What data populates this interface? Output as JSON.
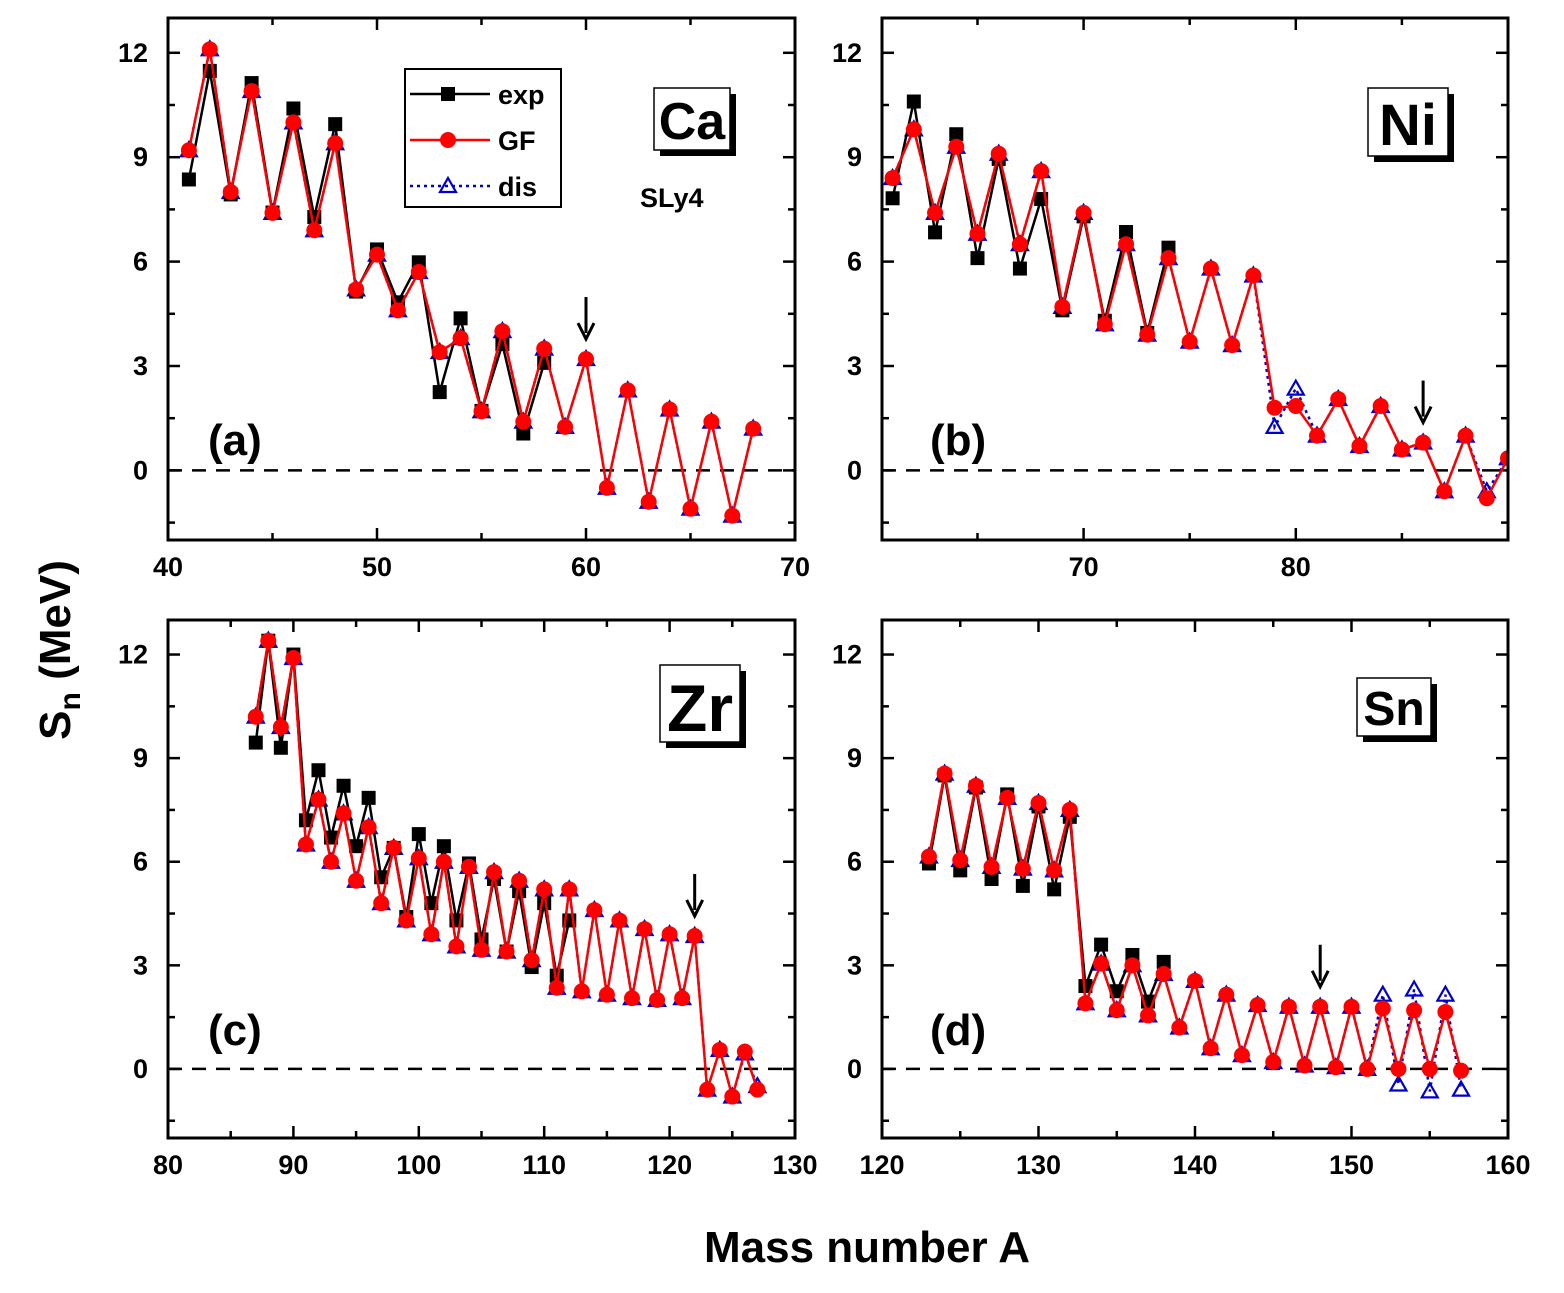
{
  "figure": {
    "ylabel_main": "S",
    "ylabel_sub": "n",
    "ylabel_unit": " (MeV)",
    "xlabel": "Mass number A",
    "legend": [
      {
        "name": "exp",
        "color": "#000000",
        "marker": "square",
        "line": "solid"
      },
      {
        "name": "GF",
        "color": "#ff0000",
        "marker": "circle",
        "line": "solid"
      },
      {
        "name": "dis",
        "color": "#0000cc",
        "marker": "triangle-open",
        "line": "dotted"
      }
    ],
    "note": "SLy4"
  },
  "chart_data": [
    {
      "type": "line",
      "panel": "(a)",
      "element": "Ca",
      "xlim": [
        40,
        70
      ],
      "ylim": [
        -2,
        13
      ],
      "xticks": [
        40,
        50,
        60,
        70
      ],
      "yticks": [
        0,
        3,
        6,
        9,
        12
      ],
      "arrow_x": 60,
      "series": [
        {
          "name": "exp",
          "x": [
            41,
            42,
            43,
            44,
            45,
            46,
            47,
            48,
            49,
            50,
            51,
            52,
            53,
            54,
            55,
            56,
            57,
            58
          ],
          "y": [
            8.36,
            11.48,
            7.93,
            11.13,
            7.41,
            10.4,
            7.28,
            9.95,
            5.14,
            6.35,
            4.83,
            5.98,
            2.25,
            4.37,
            1.71,
            3.63,
            1.06,
            3.09
          ]
        },
        {
          "name": "GF",
          "x": [
            41,
            42,
            43,
            44,
            45,
            46,
            47,
            48,
            49,
            50,
            51,
            52,
            53,
            54,
            55,
            56,
            57,
            58,
            59,
            60,
            61,
            62,
            63,
            64,
            65,
            66,
            67,
            68
          ],
          "y": [
            9.2,
            12.1,
            8.0,
            10.9,
            7.4,
            10.0,
            6.9,
            9.4,
            5.2,
            6.2,
            4.6,
            5.7,
            3.4,
            3.8,
            1.7,
            4.0,
            1.4,
            3.5,
            1.25,
            3.2,
            -0.5,
            2.3,
            -0.9,
            1.75,
            -1.1,
            1.4,
            -1.3,
            1.2
          ]
        },
        {
          "name": "dis",
          "x": [
            41,
            42,
            43,
            44,
            45,
            46,
            47,
            48,
            49,
            50,
            51,
            52,
            53,
            54,
            55,
            56,
            57,
            58,
            59,
            60,
            61,
            62,
            63,
            64,
            65,
            66,
            67,
            68
          ],
          "y": [
            9.2,
            12.1,
            8.0,
            10.9,
            7.4,
            10.0,
            6.9,
            9.4,
            5.2,
            6.2,
            4.6,
            5.7,
            3.4,
            3.8,
            1.7,
            4.0,
            1.4,
            3.5,
            1.25,
            3.2,
            -0.5,
            2.3,
            -0.9,
            1.75,
            -1.1,
            1.4,
            -1.3,
            1.2
          ]
        }
      ]
    },
    {
      "type": "line",
      "panel": "(b)",
      "element": "Ni",
      "xlim": [
        60.5,
        90
      ],
      "ylim": [
        -2,
        13
      ],
      "xticks": [
        70,
        80
      ],
      "yticks": [
        0,
        3,
        6,
        9,
        12
      ],
      "arrow_x": 86,
      "series": [
        {
          "name": "exp",
          "x": [
            61,
            62,
            63,
            64,
            65,
            66,
            67,
            68,
            69,
            70,
            71,
            72,
            73,
            74
          ],
          "y": [
            7.82,
            10.6,
            6.84,
            9.66,
            6.1,
            8.95,
            5.8,
            7.8,
            4.6,
            7.3,
            4.3,
            6.85,
            3.95,
            6.4
          ]
        },
        {
          "name": "GF",
          "x": [
            61,
            62,
            63,
            64,
            65,
            66,
            67,
            68,
            69,
            70,
            71,
            72,
            73,
            74,
            75,
            76,
            77,
            78,
            79,
            80,
            81,
            82,
            83,
            84,
            85,
            86,
            87,
            88,
            89,
            90
          ],
          "y": [
            8.4,
            9.8,
            7.4,
            9.3,
            6.8,
            9.1,
            6.5,
            8.6,
            4.7,
            7.4,
            4.2,
            6.5,
            3.9,
            6.1,
            3.7,
            5.8,
            3.6,
            5.6,
            1.8,
            1.85,
            1.0,
            2.05,
            0.7,
            1.85,
            0.6,
            0.8,
            -0.6,
            1.0,
            -0.8,
            0.35
          ]
        },
        {
          "name": "dis",
          "x": [
            61,
            62,
            63,
            64,
            65,
            66,
            67,
            68,
            69,
            70,
            71,
            72,
            73,
            74,
            75,
            76,
            77,
            78,
            79,
            80,
            81,
            82,
            83,
            84,
            85,
            86,
            87,
            88,
            89,
            90
          ],
          "y": [
            8.4,
            9.8,
            7.4,
            9.3,
            6.8,
            9.1,
            6.5,
            8.6,
            4.7,
            7.4,
            4.2,
            6.5,
            3.9,
            6.1,
            3.7,
            5.8,
            3.6,
            5.6,
            1.25,
            2.35,
            1.0,
            2.05,
            0.7,
            1.85,
            0.6,
            0.8,
            -0.6,
            1.0,
            -0.6,
            0.35
          ]
        }
      ]
    },
    {
      "type": "line",
      "panel": "(c)",
      "element": "Zr",
      "xlim": [
        80,
        130
      ],
      "ylim": [
        -2,
        13
      ],
      "xticks": [
        80,
        90,
        100,
        110,
        120,
        130
      ],
      "yticks": [
        0,
        3,
        6,
        9,
        12
      ],
      "arrow_x": 122,
      "series": [
        {
          "name": "exp",
          "x": [
            87,
            88,
            89,
            90,
            91,
            92,
            93,
            94,
            95,
            96,
            97,
            98,
            99,
            100,
            101,
            102,
            103,
            104,
            105,
            106,
            107,
            108,
            109,
            110,
            111,
            112
          ],
          "y": [
            9.45,
            12.4,
            9.3,
            12.0,
            7.2,
            8.65,
            6.7,
            8.2,
            6.45,
            7.85,
            5.55,
            6.4,
            4.4,
            6.8,
            4.8,
            6.45,
            4.3,
            5.95,
            3.75,
            5.5,
            3.4,
            5.15,
            2.95,
            4.8,
            2.7,
            4.3
          ]
        },
        {
          "name": "GF",
          "x": [
            87,
            88,
            89,
            90,
            91,
            92,
            93,
            94,
            95,
            96,
            97,
            98,
            99,
            100,
            101,
            102,
            103,
            104,
            105,
            106,
            107,
            108,
            109,
            110,
            111,
            112,
            113,
            114,
            115,
            116,
            117,
            118,
            119,
            120,
            121,
            122,
            123,
            124,
            125,
            126,
            127
          ],
          "y": [
            10.2,
            12.4,
            9.9,
            11.9,
            6.5,
            7.8,
            6.0,
            7.4,
            5.45,
            7.0,
            4.8,
            6.4,
            4.3,
            6.1,
            3.9,
            6.0,
            3.55,
            5.85,
            3.45,
            5.7,
            3.4,
            5.45,
            3.15,
            5.2,
            2.35,
            5.2,
            2.25,
            4.6,
            2.15,
            4.3,
            2.05,
            4.05,
            2.0,
            3.9,
            2.05,
            3.85,
            -0.6,
            0.55,
            -0.8,
            0.5,
            -0.6
          ]
        },
        {
          "name": "dis",
          "x": [
            87,
            88,
            89,
            90,
            91,
            92,
            93,
            94,
            95,
            96,
            97,
            98,
            99,
            100,
            101,
            102,
            103,
            104,
            105,
            106,
            107,
            108,
            109,
            110,
            111,
            112,
            113,
            114,
            115,
            116,
            117,
            118,
            119,
            120,
            121,
            122,
            123,
            124,
            125,
            126,
            127
          ],
          "y": [
            10.2,
            12.4,
            9.9,
            11.9,
            6.5,
            7.8,
            6.0,
            7.4,
            5.45,
            7.0,
            4.8,
            6.4,
            4.3,
            6.1,
            3.9,
            6.0,
            3.55,
            5.85,
            3.45,
            5.7,
            3.4,
            5.45,
            3.15,
            5.2,
            2.35,
            5.2,
            2.25,
            4.6,
            2.15,
            4.3,
            2.05,
            4.05,
            2.0,
            3.9,
            2.05,
            3.85,
            -0.6,
            0.55,
            -0.8,
            0.45,
            -0.5
          ]
        }
      ]
    },
    {
      "type": "line",
      "panel": "(d)",
      "element": "Sn",
      "xlim": [
        120,
        160
      ],
      "ylim": [
        -2,
        13
      ],
      "xticks": [
        120,
        130,
        140,
        150,
        160
      ],
      "yticks": [
        0,
        3,
        6,
        9,
        12
      ],
      "arrow_x": 148,
      "series": [
        {
          "name": "exp",
          "x": [
            123,
            124,
            125,
            126,
            127,
            128,
            129,
            130,
            131,
            132,
            133,
            134,
            135,
            136,
            137,
            138
          ],
          "y": [
            5.95,
            8.5,
            5.75,
            8.15,
            5.5,
            7.95,
            5.3,
            7.6,
            5.2,
            7.3,
            2.4,
            3.6,
            2.25,
            3.3,
            1.95,
            3.1
          ]
        },
        {
          "name": "GF",
          "x": [
            123,
            124,
            125,
            126,
            127,
            128,
            129,
            130,
            131,
            132,
            133,
            134,
            135,
            136,
            137,
            138,
            139,
            140,
            141,
            142,
            143,
            144,
            145,
            146,
            147,
            148,
            149,
            150,
            151,
            152,
            153,
            154,
            155,
            156,
            157
          ],
          "y": [
            6.15,
            8.55,
            6.05,
            8.2,
            5.85,
            7.85,
            5.8,
            7.7,
            5.75,
            7.5,
            1.9,
            3.05,
            1.7,
            3.0,
            1.55,
            2.75,
            1.2,
            2.55,
            0.6,
            2.15,
            0.4,
            1.85,
            0.2,
            1.8,
            0.1,
            1.8,
            0.05,
            1.8,
            0.0,
            1.75,
            0.0,
            1.7,
            0.0,
            1.65,
            -0.05
          ]
        },
        {
          "name": "dis",
          "x": [
            123,
            124,
            125,
            126,
            127,
            128,
            129,
            130,
            131,
            132,
            133,
            134,
            135,
            136,
            137,
            138,
            139,
            140,
            141,
            142,
            143,
            144,
            145,
            146,
            147,
            148,
            149,
            150,
            151,
            152,
            153,
            154,
            155,
            156,
            157
          ],
          "y": [
            6.15,
            8.55,
            6.05,
            8.2,
            5.85,
            7.85,
            5.8,
            7.7,
            5.75,
            7.5,
            1.9,
            3.05,
            1.7,
            3.0,
            1.55,
            2.75,
            1.2,
            2.55,
            0.6,
            2.15,
            0.4,
            1.85,
            0.2,
            1.8,
            0.1,
            1.8,
            0.05,
            1.8,
            0.0,
            2.15,
            -0.45,
            2.3,
            -0.65,
            2.15,
            -0.6
          ]
        }
      ]
    }
  ]
}
